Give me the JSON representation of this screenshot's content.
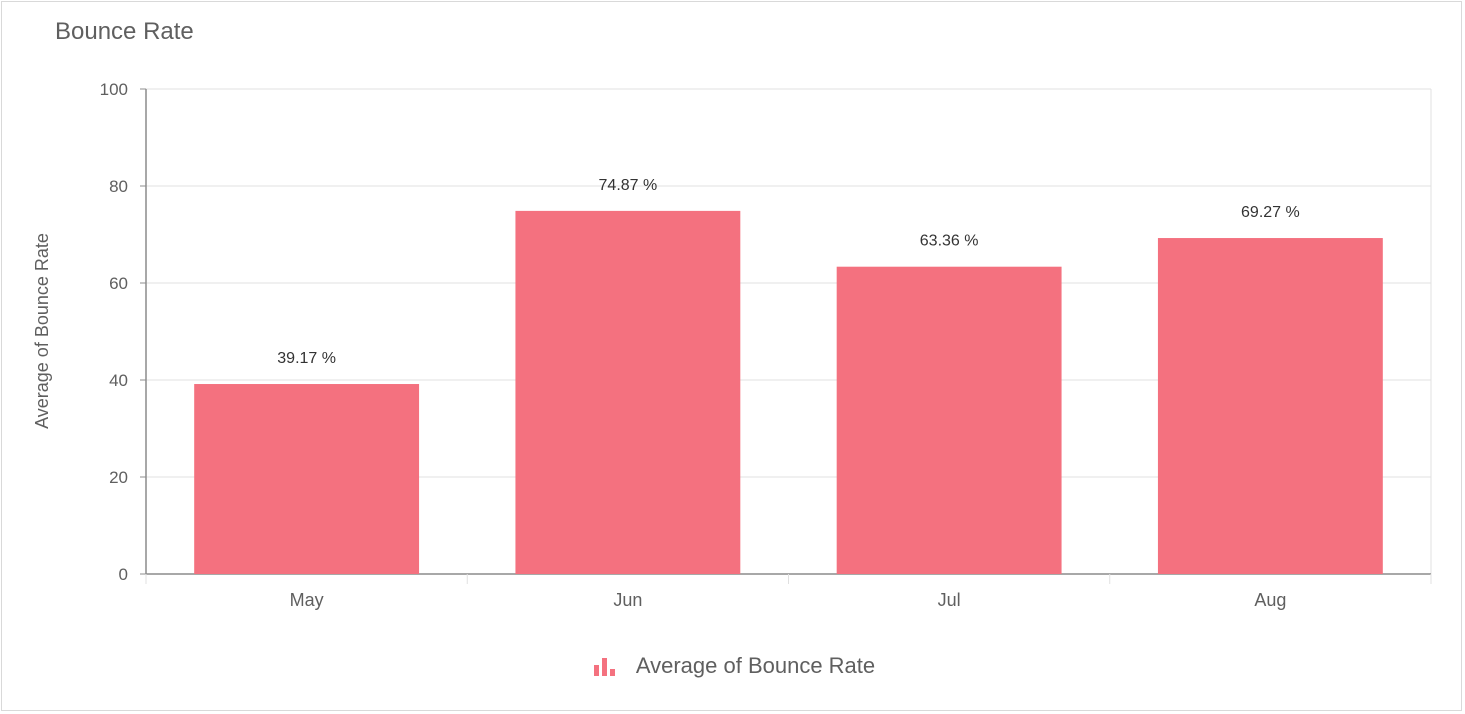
{
  "card": {
    "title": "Bounce Rate"
  },
  "colors": {
    "bar": "#f4717f",
    "grid": "#e0e0e0",
    "axis": "#8c8c8c",
    "tick_text": "#5f5f5f",
    "label_text": "#333333"
  },
  "legend": {
    "icon": "bar-chart-icon",
    "label": "Average of Bounce Rate"
  },
  "chart_data": {
    "type": "bar",
    "title": "Bounce Rate",
    "xlabel": "",
    "ylabel": "Average of Bounce Rate",
    "categories": [
      "May",
      "Jun",
      "Jul",
      "Aug"
    ],
    "series": [
      {
        "name": "Average of Bounce Rate",
        "values": [
          39.17,
          74.87,
          63.36,
          69.27
        ],
        "labels": [
          "39.17 %",
          "74.87 %",
          "63.36 %",
          "69.27 %"
        ]
      }
    ],
    "ylim": [
      0,
      100
    ],
    "yticks": [
      "0",
      "20",
      "40",
      "60",
      "80",
      "100"
    ],
    "grid": true,
    "legend_position": "bottom"
  }
}
